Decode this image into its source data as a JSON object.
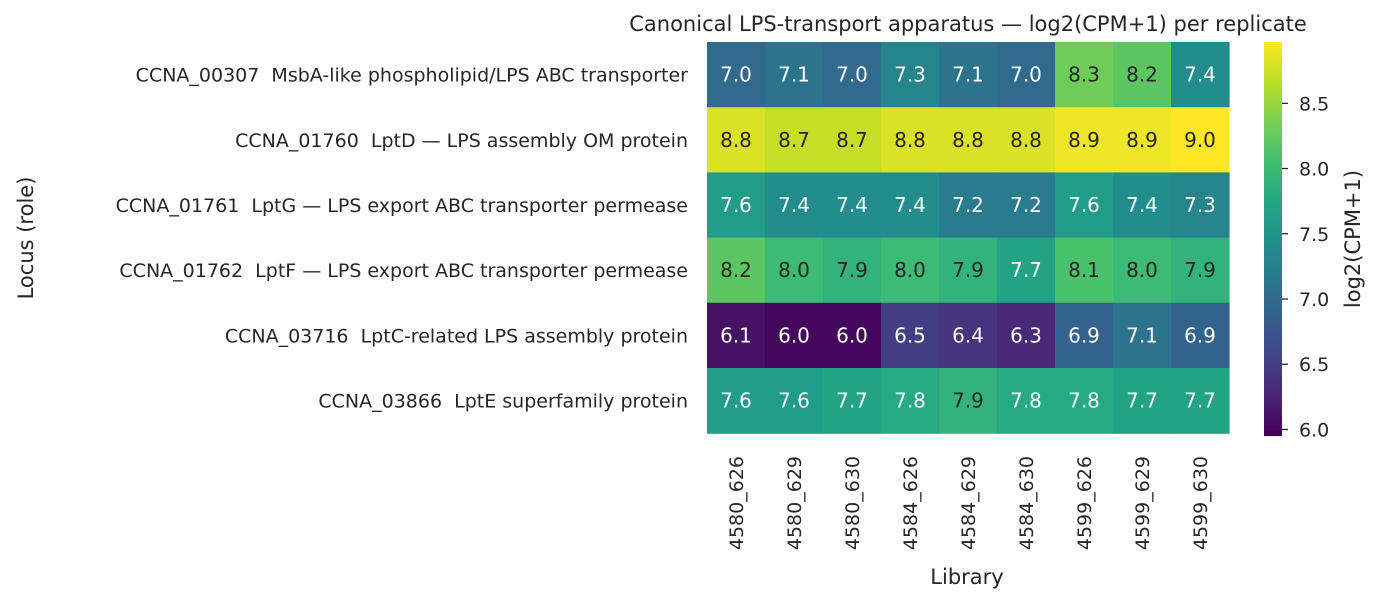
{
  "chart_data": {
    "type": "heatmap",
    "title": "Canonical LPS-transport apparatus — log2(CPM+1) per replicate",
    "xlabel": "Library",
    "ylabel": "Locus (role)",
    "colorbar_label": "log2(CPM+1)",
    "colormap": "viridis",
    "vmin": 5.95,
    "vmax": 8.97,
    "colorbar_ticks": [
      "6.0",
      "6.5",
      "7.0",
      "7.5",
      "8.0",
      "8.5"
    ],
    "x": [
      "4580_626",
      "4580_629",
      "4580_630",
      "4584_626",
      "4584_629",
      "4584_630",
      "4599_626",
      "4599_629",
      "4599_630"
    ],
    "y": [
      "CCNA_00307  MsbA-like phospholipid/LPS ABC transporter",
      "CCNA_01760  LptD — LPS assembly OM protein",
      "CCNA_01761  LptG — LPS export ABC transporter permease",
      "CCNA_01762  LptF — LPS export ABC transporter permease",
      "CCNA_03716  LptC-related LPS assembly protein",
      "CCNA_03866  LptE superfamily protein"
    ],
    "values": [
      [
        7.0,
        7.1,
        7.0,
        7.3,
        7.1,
        7.0,
        8.3,
        8.2,
        7.4
      ],
      [
        8.8,
        8.7,
        8.7,
        8.8,
        8.8,
        8.8,
        8.9,
        8.9,
        9.0
      ],
      [
        7.6,
        7.4,
        7.4,
        7.4,
        7.2,
        7.2,
        7.6,
        7.4,
        7.3
      ],
      [
        8.2,
        8.0,
        7.9,
        8.0,
        7.9,
        7.7,
        8.1,
        8.0,
        7.9
      ],
      [
        6.1,
        6.0,
        6.0,
        6.5,
        6.4,
        6.3,
        6.9,
        7.1,
        6.9
      ],
      [
        7.6,
        7.6,
        7.7,
        7.8,
        7.9,
        7.8,
        7.8,
        7.7,
        7.7
      ]
    ]
  }
}
